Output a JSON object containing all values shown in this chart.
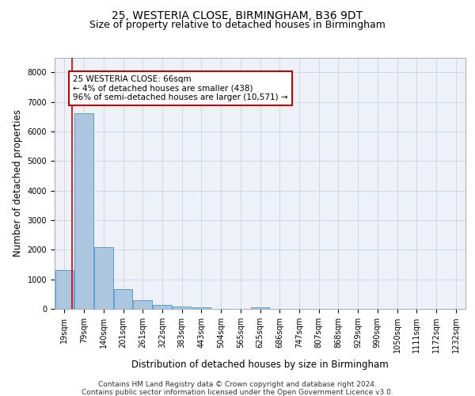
{
  "title_line1": "25, WESTERIA CLOSE, BIRMINGHAM, B36 9DT",
  "title_line2": "Size of property relative to detached houses in Birmingham",
  "xlabel": "Distribution of detached houses by size in Birmingham",
  "ylabel": "Number of detached properties",
  "categories": [
    "19sqm",
    "79sqm",
    "140sqm",
    "201sqm",
    "261sqm",
    "322sqm",
    "383sqm",
    "443sqm",
    "504sqm",
    "565sqm",
    "625sqm",
    "686sqm",
    "747sqm",
    "807sqm",
    "868sqm",
    "929sqm",
    "990sqm",
    "1050sqm",
    "1111sqm",
    "1172sqm",
    "1232sqm"
  ],
  "values": [
    1300,
    6600,
    2100,
    680,
    300,
    130,
    70,
    60,
    0,
    0,
    60,
    0,
    0,
    0,
    0,
    0,
    0,
    0,
    0,
    0,
    0
  ],
  "bar_color": "#adc6e0",
  "bar_edge_color": "#5a9fd4",
  "annotation_box_text": "25 WESTERIA CLOSE: 66sqm\n← 4% of detached houses are smaller (438)\n96% of semi-detached houses are larger (10,571) →",
  "annotation_box_color": "#ffffff",
  "annotation_box_edge_color": "#cc0000",
  "vline_color": "#cc0000",
  "vline_x": 0.38,
  "ylim": [
    0,
    8500
  ],
  "yticks": [
    0,
    1000,
    2000,
    3000,
    4000,
    5000,
    6000,
    7000,
    8000
  ],
  "grid_color": "#d0d8e8",
  "background_color": "#eef2f8",
  "footer_line1": "Contains HM Land Registry data © Crown copyright and database right 2024.",
  "footer_line2": "Contains public sector information licensed under the Open Government Licence v3.0.",
  "title_fontsize": 10,
  "subtitle_fontsize": 9,
  "axis_label_fontsize": 8.5,
  "tick_fontsize": 7,
  "annotation_fontsize": 7.5,
  "footer_fontsize": 6.5
}
